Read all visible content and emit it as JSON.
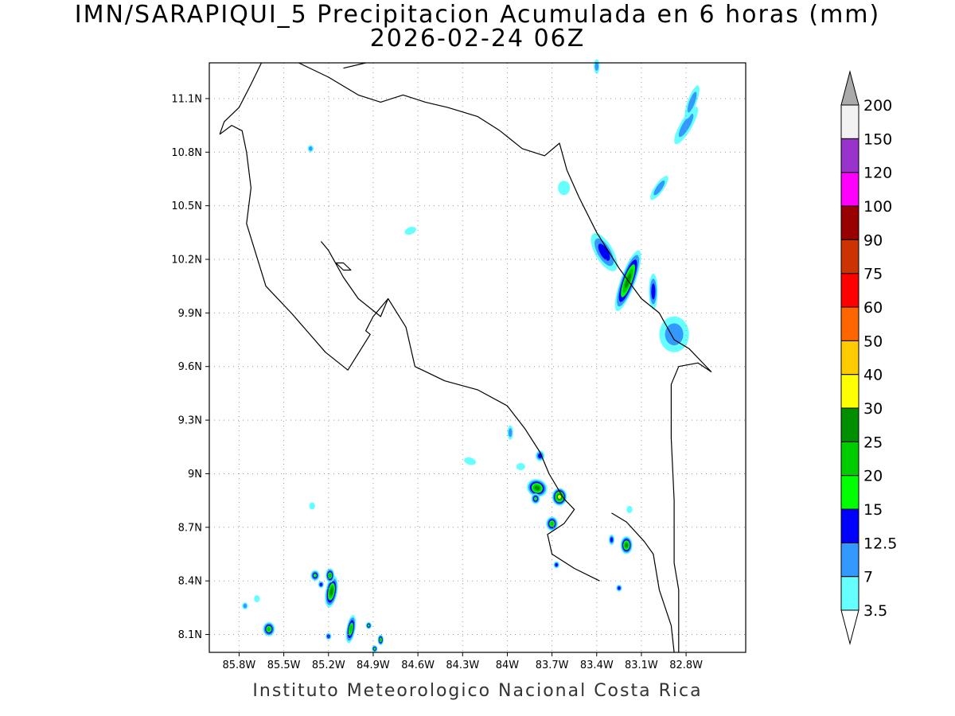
{
  "title": {
    "line1": "IMN/SARAPIQUI_5 Precipitacion Acumulada en 6 horas (mm)",
    "line2": "2026-02-24 06Z"
  },
  "footer": "Instituto Meteorologico Nacional Costa Rica",
  "map": {
    "lon_range": [
      -86.0,
      -82.4
    ],
    "lat_range": [
      8.0,
      11.3
    ],
    "lon_ticks": [
      {
        "value": -85.8,
        "label": "85.8W"
      },
      {
        "value": -85.5,
        "label": "85.5W"
      },
      {
        "value": -85.2,
        "label": "85.2W"
      },
      {
        "value": -84.9,
        "label": "84.9W"
      },
      {
        "value": -84.6,
        "label": "84.6W"
      },
      {
        "value": -84.3,
        "label": "84.3W"
      },
      {
        "value": -84.0,
        "label": "84W"
      },
      {
        "value": -83.7,
        "label": "83.7W"
      },
      {
        "value": -83.4,
        "label": "83.4W"
      },
      {
        "value": -83.1,
        "label": "83.1W"
      },
      {
        "value": -82.8,
        "label": "82.8W"
      }
    ],
    "lat_ticks": [
      {
        "value": 11.1,
        "label": "11.1N"
      },
      {
        "value": 10.8,
        "label": "10.8N"
      },
      {
        "value": 10.5,
        "label": "10.5N"
      },
      {
        "value": 10.2,
        "label": "10.2N"
      },
      {
        "value": 9.9,
        "label": "9.9N"
      },
      {
        "value": 9.6,
        "label": "9.6N"
      },
      {
        "value": 9.3,
        "label": "9.3N"
      },
      {
        "value": 9.0,
        "label": "9N"
      },
      {
        "value": 8.7,
        "label": "8.7N"
      },
      {
        "value": 8.4,
        "label": "8.4N"
      },
      {
        "value": 8.1,
        "label": "8.1N"
      }
    ],
    "grid": "dotted",
    "coastline_color": "#000000",
    "coastlines": [
      [
        [
          -85.93,
          10.9
        ],
        [
          -85.85,
          10.95
        ],
        [
          -85.78,
          10.92
        ],
        [
          -85.75,
          10.8
        ],
        [
          -85.72,
          10.6
        ],
        [
          -85.75,
          10.4
        ],
        [
          -85.62,
          10.05
        ],
        [
          -85.45,
          9.9
        ],
        [
          -85.22,
          9.68
        ],
        [
          -85.07,
          9.58
        ],
        [
          -84.92,
          9.78
        ],
        [
          -84.95,
          9.8
        ],
        [
          -84.9,
          9.88
        ],
        [
          -84.8,
          9.98
        ],
        [
          -84.68,
          9.82
        ],
        [
          -84.62,
          9.6
        ],
        [
          -84.42,
          9.52
        ],
        [
          -84.2,
          9.47
        ],
        [
          -84.0,
          9.38
        ],
        [
          -83.88,
          9.25
        ],
        [
          -83.78,
          9.12
        ],
        [
          -83.72,
          9.0
        ],
        [
          -83.62,
          8.86
        ],
        [
          -83.55,
          8.8
        ],
        [
          -83.62,
          8.72
        ],
        [
          -83.73,
          8.66
        ],
        [
          -83.7,
          8.55
        ],
        [
          -83.55,
          8.47
        ],
        [
          -83.38,
          8.4
        ]
      ],
      [
        [
          -85.93,
          10.9
        ],
        [
          -85.9,
          10.97
        ],
        [
          -85.8,
          11.05
        ],
        [
          -85.72,
          11.18
        ],
        [
          -85.65,
          11.3
        ]
      ],
      [
        [
          -85.4,
          11.3
        ],
        [
          -85.2,
          11.22
        ],
        [
          -85.0,
          11.12
        ],
        [
          -84.85,
          11.08
        ],
        [
          -84.7,
          11.12
        ],
        [
          -84.55,
          11.08
        ],
        [
          -84.4,
          11.05
        ],
        [
          -84.2,
          11.0
        ],
        [
          -84.05,
          10.92
        ],
        [
          -83.9,
          10.82
        ],
        [
          -83.75,
          10.78
        ],
        [
          -83.65,
          10.85
        ],
        [
          -83.6,
          10.7
        ],
        [
          -83.52,
          10.55
        ],
        [
          -83.4,
          10.35
        ],
        [
          -83.25,
          10.15
        ],
        [
          -83.1,
          9.98
        ],
        [
          -82.98,
          9.9
        ],
        [
          -82.88,
          9.75
        ],
        [
          -82.78,
          9.7
        ],
        [
          -82.63,
          9.57
        ]
      ],
      [
        [
          -85.1,
          11.27
        ],
        [
          -84.95,
          11.3
        ]
      ],
      [
        [
          -85.25,
          10.3
        ],
        [
          -85.2,
          10.25
        ],
        [
          -85.1,
          10.1
        ],
        [
          -85.0,
          9.98
        ],
        [
          -84.85,
          9.88
        ],
        [
          -84.8,
          9.98
        ]
      ],
      [
        [
          -85.15,
          10.18
        ],
        [
          -85.1,
          10.14
        ],
        [
          -85.05,
          10.14
        ],
        [
          -85.1,
          10.18
        ],
        [
          -85.15,
          10.18
        ]
      ],
      [
        [
          -83.3,
          8.78
        ],
        [
          -83.2,
          8.73
        ],
        [
          -83.08,
          8.62
        ],
        [
          -83.02,
          8.55
        ],
        [
          -82.98,
          8.35
        ],
        [
          -82.9,
          8.15
        ],
        [
          -82.88,
          8.0
        ]
      ],
      [
        [
          -82.85,
          8.0
        ],
        [
          -82.85,
          8.35
        ],
        [
          -82.88,
          8.5
        ],
        [
          -82.88,
          8.85
        ],
        [
          -82.9,
          9.2
        ],
        [
          -82.9,
          9.5
        ],
        [
          -82.85,
          9.6
        ],
        [
          -82.72,
          9.62
        ],
        [
          -82.63,
          9.57
        ]
      ]
    ]
  },
  "colorbar": {
    "levels": [
      {
        "label": "3.5",
        "color": "#ffffff"
      },
      {
        "label": "7",
        "color": "#66ffff"
      },
      {
        "label": "12.5",
        "color": "#3399ff"
      },
      {
        "label": "15",
        "color": "#0000ff"
      },
      {
        "label": "20",
        "color": "#00ff00"
      },
      {
        "label": "25",
        "color": "#00cc00"
      },
      {
        "label": "30",
        "color": "#008f00"
      },
      {
        "label": "40",
        "color": "#ffff00"
      },
      {
        "label": "50",
        "color": "#ffcc00"
      },
      {
        "label": "60",
        "color": "#ff6600"
      },
      {
        "label": "75",
        "color": "#ff0000"
      },
      {
        "label": "90",
        "color": "#cc3300"
      },
      {
        "label": "100",
        "color": "#990000"
      },
      {
        "label": "120",
        "color": "#ff00ff"
      },
      {
        "label": "150",
        "color": "#9933cc"
      },
      {
        "label": "200",
        "color": "#f2f2f2"
      }
    ],
    "over_color": "#aaaaaa"
  },
  "precip_cells": [
    {
      "lon": -83.35,
      "lat": 10.24,
      "w": 0.06,
      "h": 0.12,
      "rot": -30,
      "level": 3
    },
    {
      "lon": -83.19,
      "lat": 10.08,
      "w": 0.05,
      "h": 0.18,
      "rot": 20,
      "level": 6
    },
    {
      "lon": -83.02,
      "lat": 10.02,
      "w": 0.03,
      "h": 0.1,
      "rot": 0,
      "level": 3
    },
    {
      "lon": -82.88,
      "lat": 9.78,
      "w": 0.1,
      "h": 0.1,
      "rot": 0,
      "level": 2
    },
    {
      "lon": -82.8,
      "lat": 10.95,
      "w": 0.04,
      "h": 0.12,
      "rot": 30,
      "level": 2
    },
    {
      "lon": -82.76,
      "lat": 11.08,
      "w": 0.03,
      "h": 0.1,
      "rot": 20,
      "level": 2
    },
    {
      "lon": -82.98,
      "lat": 10.6,
      "w": 0.03,
      "h": 0.08,
      "rot": 35,
      "level": 2
    },
    {
      "lon": -83.62,
      "lat": 10.6,
      "w": 0.04,
      "h": 0.04,
      "rot": 0,
      "level": 1
    },
    {
      "lon": -85.32,
      "lat": 10.82,
      "w": 0.02,
      "h": 0.02,
      "rot": 0,
      "level": 2
    },
    {
      "lon": -84.65,
      "lat": 10.36,
      "w": 0.04,
      "h": 0.02,
      "rot": -20,
      "level": 1
    },
    {
      "lon": -83.8,
      "lat": 8.92,
      "w": 0.07,
      "h": 0.05,
      "rot": 20,
      "level": 6
    },
    {
      "lon": -83.65,
      "lat": 8.87,
      "w": 0.05,
      "h": 0.05,
      "rot": 0,
      "level": 7
    },
    {
      "lon": -83.81,
      "lat": 8.86,
      "w": 0.03,
      "h": 0.03,
      "rot": 0,
      "level": 4
    },
    {
      "lon": -83.7,
      "lat": 8.72,
      "w": 0.04,
      "h": 0.04,
      "rot": 0,
      "level": 5
    },
    {
      "lon": -83.78,
      "lat": 9.1,
      "w": 0.03,
      "h": 0.03,
      "rot": 0,
      "level": 3
    },
    {
      "lon": -83.98,
      "lat": 9.23,
      "w": 0.02,
      "h": 0.04,
      "rot": 0,
      "level": 2
    },
    {
      "lon": -83.91,
      "lat": 9.04,
      "w": 0.03,
      "h": 0.02,
      "rot": 0,
      "level": 1
    },
    {
      "lon": -84.25,
      "lat": 9.07,
      "w": 0.04,
      "h": 0.02,
      "rot": 15,
      "level": 1
    },
    {
      "lon": -83.2,
      "lat": 8.6,
      "w": 0.04,
      "h": 0.05,
      "rot": 0,
      "level": 6
    },
    {
      "lon": -83.3,
      "lat": 8.63,
      "w": 0.02,
      "h": 0.03,
      "rot": 0,
      "level": 3
    },
    {
      "lon": -83.25,
      "lat": 8.36,
      "w": 0.02,
      "h": 0.02,
      "rot": 0,
      "level": 3
    },
    {
      "lon": -83.67,
      "lat": 8.49,
      "w": 0.02,
      "h": 0.02,
      "rot": 0,
      "level": 3
    },
    {
      "lon": -85.18,
      "lat": 8.34,
      "w": 0.04,
      "h": 0.09,
      "rot": 10,
      "level": 6
    },
    {
      "lon": -85.19,
      "lat": 8.43,
      "w": 0.03,
      "h": 0.04,
      "rot": 0,
      "level": 5
    },
    {
      "lon": -85.29,
      "lat": 8.43,
      "w": 0.03,
      "h": 0.03,
      "rot": 0,
      "level": 4
    },
    {
      "lon": -85.25,
      "lat": 8.38,
      "w": 0.02,
      "h": 0.02,
      "rot": 0,
      "level": 3
    },
    {
      "lon": -85.05,
      "lat": 8.13,
      "w": 0.03,
      "h": 0.08,
      "rot": 10,
      "level": 5
    },
    {
      "lon": -85.6,
      "lat": 8.13,
      "w": 0.04,
      "h": 0.04,
      "rot": 0,
      "level": 5
    },
    {
      "lon": -84.93,
      "lat": 8.15,
      "w": 0.02,
      "h": 0.02,
      "rot": 0,
      "level": 4
    },
    {
      "lon": -84.85,
      "lat": 8.07,
      "w": 0.02,
      "h": 0.03,
      "rot": 0,
      "level": 5
    },
    {
      "lon": -84.89,
      "lat": 8.02,
      "w": 0.02,
      "h": 0.02,
      "rot": 0,
      "level": 4
    },
    {
      "lon": -85.2,
      "lat": 8.09,
      "w": 0.02,
      "h": 0.02,
      "rot": 0,
      "level": 3
    },
    {
      "lon": -85.76,
      "lat": 8.26,
      "w": 0.02,
      "h": 0.02,
      "rot": 0,
      "level": 2
    },
    {
      "lon": -85.68,
      "lat": 8.3,
      "w": 0.02,
      "h": 0.02,
      "rot": 0,
      "level": 1
    },
    {
      "lon": -85.31,
      "lat": 8.82,
      "w": 0.02,
      "h": 0.02,
      "rot": 0,
      "level": 1
    },
    {
      "lon": -83.4,
      "lat": 11.28,
      "w": 0.02,
      "h": 0.04,
      "rot": 0,
      "level": 2
    },
    {
      "lon": -83.18,
      "lat": 8.8,
      "w": 0.02,
      "h": 0.02,
      "rot": 0,
      "level": 1
    }
  ]
}
